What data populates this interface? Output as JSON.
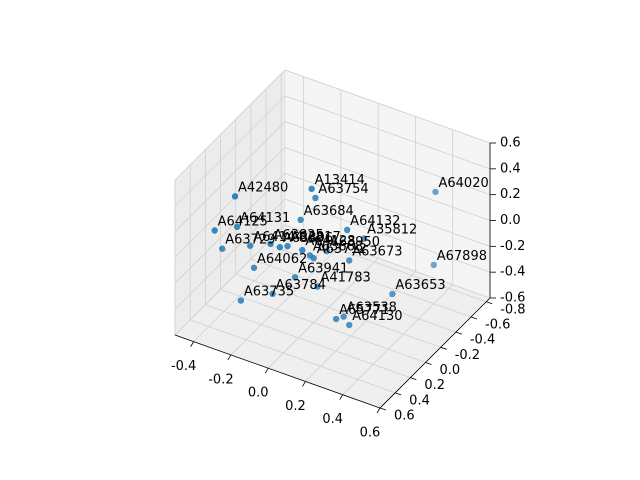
{
  "chart_data": {
    "type": "scatter",
    "projection": "3d",
    "title": "",
    "xlabel": "",
    "ylabel": "",
    "zlabel": "",
    "xlim": [
      -0.5,
      0.6
    ],
    "ylim": [
      -0.85,
      0.6
    ],
    "zlim": [
      -0.6,
      0.6
    ],
    "x_ticks": [
      "-0.4",
      "-0.2",
      "0.0",
      "0.2",
      "0.4",
      "0.6"
    ],
    "y_ticks": [
      "-0.8",
      "-0.6",
      "-0.4",
      "-0.2",
      "0.0",
      "0.2",
      "0.4",
      "0.6"
    ],
    "z_ticks": [
      "-0.6",
      "-0.4",
      "-0.2",
      "0.0",
      "0.2",
      "0.4",
      "0.6"
    ],
    "grid": true,
    "marker_color": "#1f77b4",
    "points": [
      {
        "label": "A13414",
        "x": 0.05,
        "y": 0.15,
        "z": 0.55
      },
      {
        "label": "A63754",
        "x": 0.05,
        "y": 0.1,
        "z": 0.45
      },
      {
        "label": "A42480",
        "x": -0.3,
        "y": 0.3,
        "z": 0.4
      },
      {
        "label": "A63684",
        "x": -0.05,
        "y": 0.05,
        "z": 0.2
      },
      {
        "label": "A64132",
        "x": 0.2,
        "y": 0.05,
        "z": 0.25
      },
      {
        "label": "A64020",
        "x": 0.45,
        "y": -0.5,
        "z": 0.35
      },
      {
        "label": "A35812",
        "x": 0.25,
        "y": -0.05,
        "z": 0.15
      },
      {
        "label": "A64131",
        "x": -0.35,
        "y": 0.15,
        "z": 0.05
      },
      {
        "label": "A63825",
        "x": -0.15,
        "y": 0.2,
        "z": 0.05
      },
      {
        "label": "A63896",
        "x": -0.1,
        "y": 0.2,
        "z": 0.05
      },
      {
        "label": "A64128",
        "x": 0.0,
        "y": 0.15,
        "z": 0.05
      },
      {
        "label": "A64125",
        "x": -0.45,
        "y": 0.2,
        "z": 0.0
      },
      {
        "label": "A63817",
        "x": -0.1,
        "y": 0.1,
        "z": 0.0
      },
      {
        "label": "A64144",
        "x": -0.3,
        "y": 0.1,
        "z": -0.1
      },
      {
        "label": "A63668",
        "x": 0.0,
        "y": 0.05,
        "z": -0.05
      },
      {
        "label": "A63712",
        "x": 0.0,
        "y": 0.0,
        "z": -0.1
      },
      {
        "label": "A63950",
        "x": 0.05,
        "y": -0.05,
        "z": -0.05
      },
      {
        "label": "A63673",
        "x": 0.15,
        "y": -0.1,
        "z": -0.1
      },
      {
        "label": "A63729",
        "x": -0.45,
        "y": 0.1,
        "z": -0.2
      },
      {
        "label": "A64062",
        "x": -0.3,
        "y": 0.05,
        "z": -0.3
      },
      {
        "label": "A63941",
        "x": -0.1,
        "y": 0.0,
        "z": -0.3
      },
      {
        "label": "A41783",
        "x": 0.0,
        "y": -0.05,
        "z": -0.35
      },
      {
        "label": "A67898",
        "x": 0.4,
        "y": -0.6,
        "z": -0.3
      },
      {
        "label": "A63784",
        "x": -0.2,
        "y": 0.05,
        "z": -0.45
      },
      {
        "label": "A63653",
        "x": 0.3,
        "y": -0.3,
        "z": -0.4
      },
      {
        "label": "A63735",
        "x": -0.35,
        "y": 0.1,
        "z": -0.55
      },
      {
        "label": "A65771",
        "x": 0.1,
        "y": -0.05,
        "z": -0.55
      },
      {
        "label": "A63538",
        "x": 0.12,
        "y": -0.1,
        "z": -0.55
      },
      {
        "label": "A64130",
        "x": 0.15,
        "y": -0.1,
        "z": -0.6
      }
    ]
  }
}
